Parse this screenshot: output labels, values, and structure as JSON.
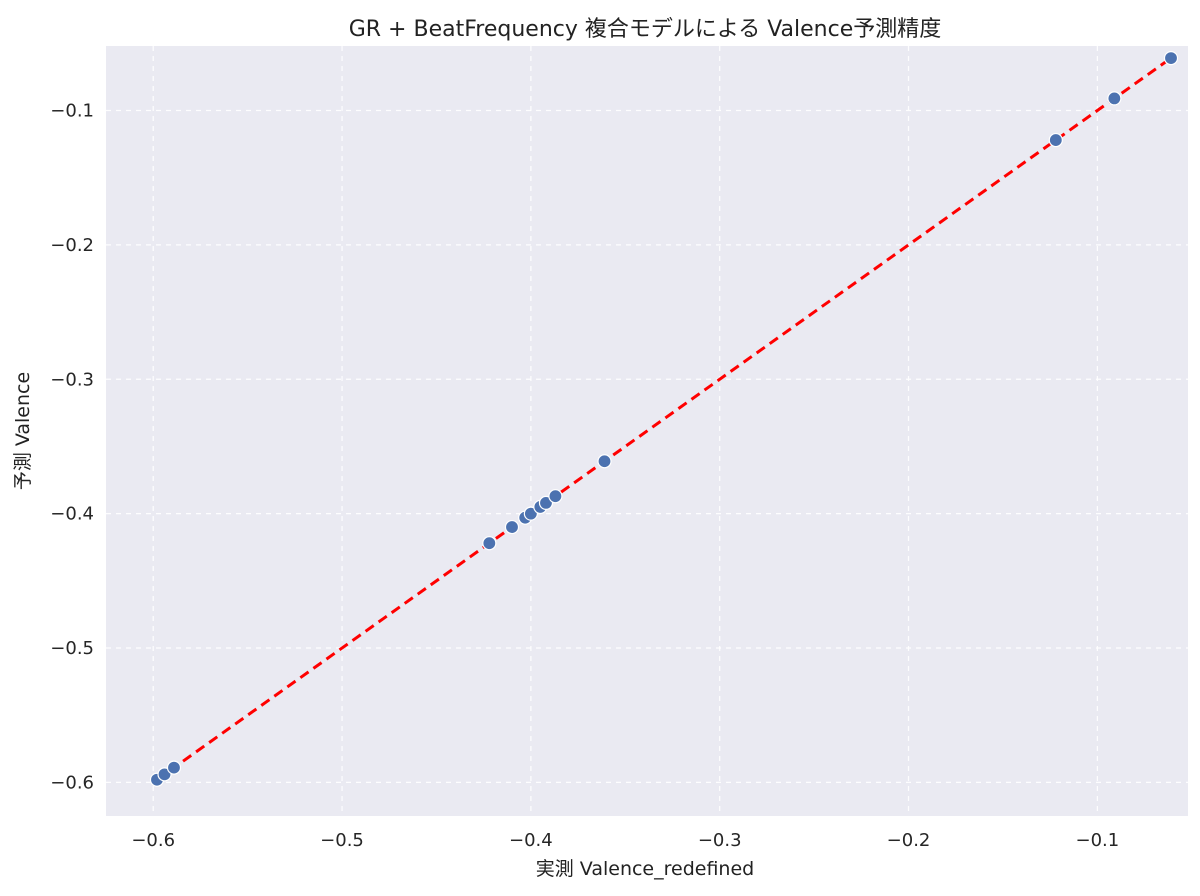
{
  "chart_data": {
    "type": "scatter",
    "title": "GR + BeatFrequency 複合モデルによる Valence予測精度",
    "xlabel": "実測 Valence_redefined",
    "ylabel": "予測 Valence",
    "xlim": [
      -0.625,
      -0.052
    ],
    "ylim": [
      -0.625,
      -0.052
    ],
    "xticks": [
      -0.6,
      -0.5,
      -0.4,
      -0.3,
      -0.2,
      -0.1
    ],
    "yticks": [
      -0.6,
      -0.5,
      -0.4,
      -0.3,
      -0.2,
      -0.1
    ],
    "xtick_labels": [
      "−0.6",
      "−0.5",
      "−0.4",
      "−0.3",
      "−0.2",
      "−0.1"
    ],
    "ytick_labels": [
      "−0.6",
      "−0.5",
      "−0.4",
      "−0.3",
      "−0.2",
      "−0.1"
    ],
    "grid": true,
    "series": [
      {
        "type": "scatter",
        "color": "#4c72b0",
        "points": [
          {
            "x": -0.598,
            "y": -0.598
          },
          {
            "x": -0.594,
            "y": -0.594
          },
          {
            "x": -0.589,
            "y": -0.589
          },
          {
            "x": -0.422,
            "y": -0.422
          },
          {
            "x": -0.41,
            "y": -0.41
          },
          {
            "x": -0.403,
            "y": -0.403
          },
          {
            "x": -0.4,
            "y": -0.4
          },
          {
            "x": -0.395,
            "y": -0.395
          },
          {
            "x": -0.392,
            "y": -0.392
          },
          {
            "x": -0.387,
            "y": -0.387
          },
          {
            "x": -0.361,
            "y": -0.361
          },
          {
            "x": -0.122,
            "y": -0.122
          },
          {
            "x": -0.091,
            "y": -0.091
          },
          {
            "x": -0.061,
            "y": -0.061
          }
        ]
      },
      {
        "type": "line",
        "color": "#ff0000",
        "style": "dashed",
        "x": [
          -0.598,
          -0.061
        ],
        "y": [
          -0.598,
          -0.061
        ]
      }
    ]
  },
  "colors": {
    "plot_background": "#eaeaf2",
    "points": "#4c72b0",
    "fit_line": "#ff0000"
  }
}
